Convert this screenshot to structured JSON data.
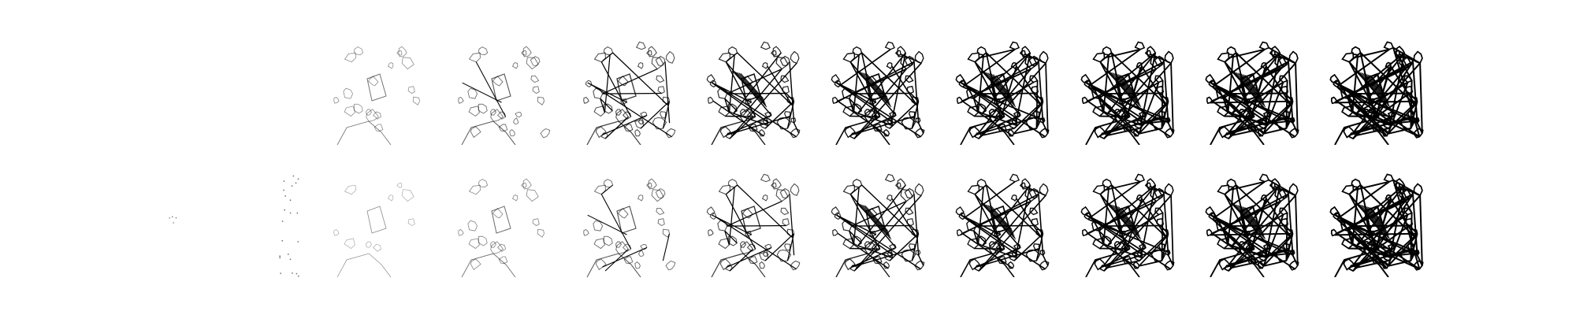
{
  "figure": {
    "background": "#ffffff",
    "ink": "#000000",
    "rows": [
      {
        "id": "top",
        "tiles": [
          {
            "step": 1,
            "strength": 0.0
          },
          {
            "step": 2,
            "strength": 0.0
          },
          {
            "step": 3,
            "strength": 0.22
          },
          {
            "step": 4,
            "strength": 0.32
          },
          {
            "step": 5,
            "strength": 0.45
          },
          {
            "step": 6,
            "strength": 0.58
          },
          {
            "step": 7,
            "strength": 0.7
          },
          {
            "step": 8,
            "strength": 0.8
          },
          {
            "step": 9,
            "strength": 0.88
          },
          {
            "step": 10,
            "strength": 0.94
          },
          {
            "step": 11,
            "strength": 1.0
          }
        ]
      },
      {
        "id": "bottom",
        "tiles": [
          {
            "step": 1,
            "strength": 0.0
          },
          {
            "step": 2,
            "strength": 0.06
          },
          {
            "step": 3,
            "strength": 0.12
          },
          {
            "step": 4,
            "strength": 0.24
          },
          {
            "step": 5,
            "strength": 0.34
          },
          {
            "step": 6,
            "strength": 0.46
          },
          {
            "step": 7,
            "strength": 0.58
          },
          {
            "step": 8,
            "strength": 0.7
          },
          {
            "step": 9,
            "strength": 0.8
          },
          {
            "step": 10,
            "strength": 0.9
          },
          {
            "step": 11,
            "strength": 1.0
          }
        ]
      }
    ]
  }
}
